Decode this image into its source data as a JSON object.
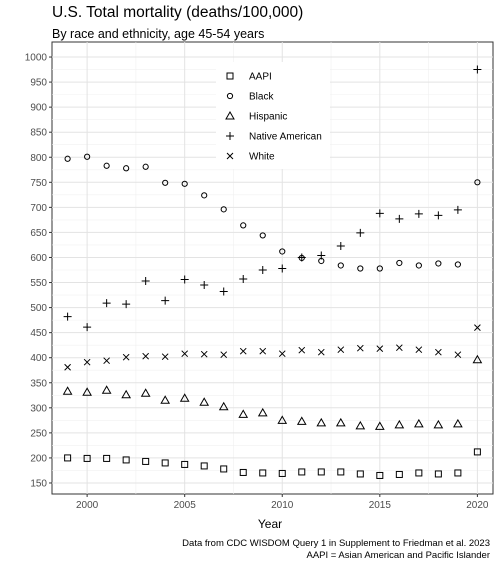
{
  "chart_data": {
    "type": "scatter",
    "title": "U.S. Total mortality (deaths/100,000)",
    "subtitle": "By race and ethnicity, age 45-54 years",
    "xlabel": "Year",
    "ylabel": "",
    "xlim": [
      1998.2,
      2020.8
    ],
    "ylim": [
      128,
      1030
    ],
    "xticks": [
      2000,
      2005,
      2010,
      2015,
      2020
    ],
    "yticks": [
      150,
      200,
      250,
      300,
      350,
      400,
      450,
      500,
      550,
      600,
      650,
      700,
      750,
      800,
      850,
      900,
      950,
      1000
    ],
    "grid": true,
    "legend_position": "top-center",
    "x": [
      1999,
      2000,
      2001,
      2002,
      2003,
      2004,
      2005,
      2006,
      2007,
      2008,
      2009,
      2010,
      2011,
      2012,
      2013,
      2014,
      2015,
      2016,
      2017,
      2018,
      2019,
      2020
    ],
    "series": [
      {
        "name": "AAPI",
        "marker": "square",
        "values": [
          200,
          199,
          199,
          196,
          193,
          190,
          187,
          184,
          178,
          171,
          170,
          169,
          172,
          172,
          172,
          168,
          165,
          167,
          170,
          168,
          170,
          212
        ]
      },
      {
        "name": "Black",
        "marker": "circle",
        "values": [
          797,
          801,
          783,
          778,
          781,
          749,
          747,
          724,
          696,
          664,
          644,
          612,
          599,
          593,
          584,
          578,
          578,
          589,
          584,
          588,
          586,
          750
        ]
      },
      {
        "name": "Hispanic",
        "marker": "triangle",
        "values": [
          333,
          331,
          335,
          326,
          329,
          315,
          319,
          311,
          302,
          287,
          290,
          275,
          273,
          270,
          270,
          264,
          263,
          266,
          268,
          266,
          268,
          396
        ]
      },
      {
        "name": "Native American",
        "marker": "plus",
        "values": [
          482,
          461,
          509,
          507,
          553,
          514,
          556,
          545,
          532,
          557,
          575,
          578,
          600,
          604,
          623,
          649,
          688,
          677,
          687,
          684,
          695,
          975
        ]
      },
      {
        "name": "White",
        "marker": "cross",
        "values": [
          381,
          391,
          394,
          401,
          403,
          402,
          408,
          407,
          406,
          413,
          413,
          408,
          415,
          411,
          416,
          419,
          418,
          420,
          416,
          411,
          406,
          460
        ]
      }
    ]
  },
  "captions": {
    "line1": "Data from CDC WISDOM Query 1 in Supplement to Friedman et al. 2023",
    "line2": "AAPI = Asian American and Pacific Islander"
  }
}
